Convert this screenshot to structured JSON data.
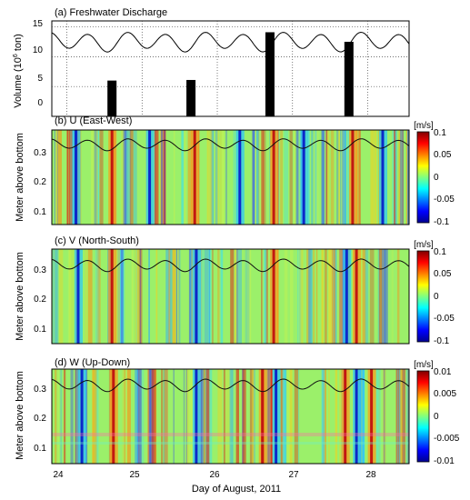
{
  "figure": {
    "xlabel": "Day of August, 2011",
    "x_ticks": [
      "24",
      "25",
      "26",
      "27",
      "28"
    ]
  },
  "chart_data": [
    {
      "type": "bar",
      "title": "(a) Freshwater Discharge",
      "ylabel_main": "Volume (10",
      "ylabel_sup": "6",
      "ylabel_end": " ton)",
      "xlim": [
        23.8,
        28.55
      ],
      "ylim": [
        0,
        16
      ],
      "y_ticks": [
        "0",
        "5",
        "10",
        "15"
      ],
      "grid": "dotted",
      "bars": [
        {
          "x": 24.6,
          "value": 6
        },
        {
          "x": 25.65,
          "value": 6.1
        },
        {
          "x": 26.7,
          "value": 14.1
        },
        {
          "x": 27.75,
          "value": 12.5
        }
      ],
      "line": {
        "name": "",
        "amplitude": 1.4,
        "mean": 12.5,
        "period_days": 0.517
      }
    },
    {
      "type": "heatmap",
      "title": "(b) U (East-West)",
      "ylabel": "Meter above bottom",
      "unit": "[m/s]",
      "ylim": [
        0.03,
        0.355
      ],
      "y_ticks": [
        "0.1",
        "0.2",
        "0.3"
      ],
      "colorbar_ticks": [
        "0.1",
        "0.05",
        "0",
        "-0.05",
        "-0.1"
      ],
      "strong_bands_day": [
        24.12,
        24.6,
        25.1,
        25.7,
        26.3,
        26.75,
        27.15,
        27.8,
        28.2
      ],
      "overlay_line": {
        "mean": 0.305,
        "amplitude": 0.017
      }
    },
    {
      "type": "heatmap",
      "title": "(c) V (North-South)",
      "ylabel": "Meter above bottom",
      "unit": "[m/s]",
      "ylim": [
        0.03,
        0.355
      ],
      "y_ticks": [
        "0.1",
        "0.2",
        "0.3"
      ],
      "colorbar_ticks": [
        "0.1",
        "0.05",
        "0",
        "-0.05",
        "-0.1"
      ],
      "strong_bands_day": [
        24.15,
        24.6,
        25.72,
        26.75,
        27.72,
        27.85
      ],
      "overlay_line": {
        "mean": 0.3,
        "amplitude": 0.018
      }
    },
    {
      "type": "heatmap",
      "title": "(d) W (Up-Down)",
      "ylabel": "Meter above bottom",
      "unit": "[m/s]",
      "ylim": [
        0.03,
        0.355
      ],
      "y_ticks": [
        "0.1",
        "0.2",
        "0.3"
      ],
      "colorbar_ticks": [
        "0.01",
        "0.005",
        "0",
        "-0.005",
        "-0.01"
      ],
      "strong_bands_day": [
        24.2,
        24.62,
        25.72,
        26.6,
        26.78,
        27.7,
        27.85,
        28.05
      ],
      "overlay_line": {
        "mean": 0.3,
        "amplitude": 0.018
      }
    }
  ]
}
